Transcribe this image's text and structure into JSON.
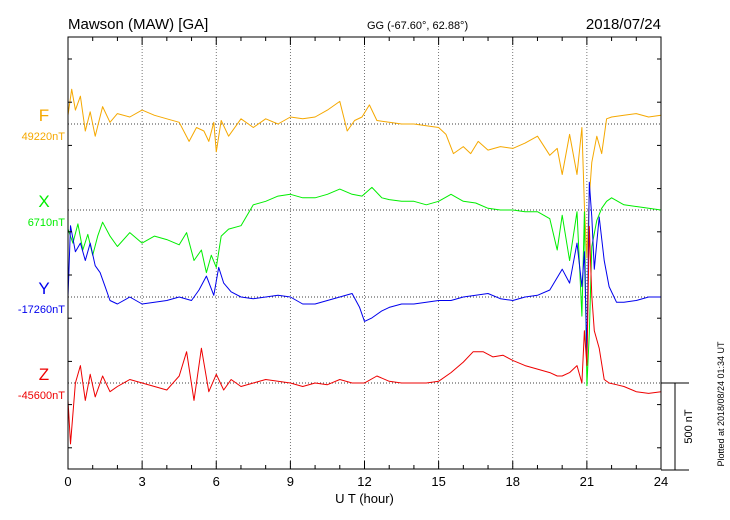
{
  "header": {
    "station": "Mawson (MAW)  [GA]",
    "coords": "GG (-67.60°,  62.88°)",
    "date": "2018/07/24"
  },
  "footer_note": "Plotted at 2018/08/24 01:34 UT",
  "chart_data": {
    "type": "line",
    "xlabel": "U T (hour)",
    "xlim": [
      0,
      24
    ],
    "xticks": [
      0,
      3,
      6,
      9,
      12,
      15,
      18,
      21,
      24
    ],
    "grid": true,
    "scale_bar": {
      "value": 500,
      "label": "500 nT"
    },
    "series": [
      {
        "name": "F",
        "baseline_label": "49220nT",
        "baseline": 49220,
        "color": "#f5a800",
        "x": [
          0,
          0.15,
          0.3,
          0.5,
          0.7,
          0.9,
          1.1,
          1.4,
          1.7,
          2.0,
          2.5,
          3.0,
          3.5,
          4.0,
          4.5,
          4.9,
          5.2,
          5.5,
          5.7,
          5.9,
          6.0,
          6.2,
          6.5,
          7.0,
          7.5,
          8.0,
          8.5,
          9.0,
          9.5,
          10.0,
          10.5,
          11.0,
          11.3,
          11.6,
          11.9,
          12.2,
          12.5,
          13.0,
          13.5,
          14.0,
          14.5,
          15.0,
          15.3,
          15.6,
          16.0,
          16.3,
          16.6,
          17.0,
          17.5,
          18.0,
          18.5,
          19.0,
          19.5,
          19.8,
          20.0,
          20.3,
          20.6,
          20.8,
          20.9,
          21.0,
          21.1,
          21.2,
          21.4,
          21.6,
          21.8,
          22.0,
          22.5,
          23.0,
          23.5,
          24.0
        ],
        "y": [
          49270,
          49420,
          49300,
          49380,
          49180,
          49290,
          49150,
          49320,
          49230,
          49280,
          49260,
          49300,
          49270,
          49250,
          49230,
          49120,
          49200,
          49180,
          49120,
          49230,
          49060,
          49240,
          49150,
          49250,
          49200,
          49250,
          49220,
          49260,
          49250,
          49260,
          49300,
          49350,
          49180,
          49240,
          49260,
          49330,
          49240,
          49230,
          49220,
          49220,
          49210,
          49200,
          49160,
          49050,
          49090,
          49050,
          49120,
          49070,
          49090,
          49080,
          49110,
          49150,
          49040,
          49080,
          48930,
          49160,
          48930,
          49200,
          48750,
          48450,
          48800,
          49000,
          49150,
          49050,
          49250,
          49260,
          49270,
          49280,
          49260,
          49270
        ]
      },
      {
        "name": "X",
        "baseline_label": "6710nT",
        "baseline": 6710,
        "color": "#00ee00",
        "x": [
          0,
          0.2,
          0.4,
          0.6,
          0.8,
          1.0,
          1.2,
          1.4,
          1.7,
          2.0,
          2.5,
          3.0,
          3.5,
          4.0,
          4.5,
          4.8,
          5.1,
          5.4,
          5.6,
          5.8,
          6.0,
          6.2,
          6.5,
          7.0,
          7.5,
          8.0,
          8.5,
          9.0,
          9.5,
          10.0,
          10.5,
          11.0,
          11.5,
          11.9,
          12.3,
          12.7,
          13.0,
          13.5,
          14.0,
          14.5,
          15.0,
          15.5,
          16.0,
          16.5,
          17.0,
          17.5,
          18.0,
          18.5,
          19.0,
          19.5,
          19.8,
          20.0,
          20.3,
          20.6,
          20.8,
          20.9,
          21.0,
          21.1,
          21.2,
          21.4,
          21.6,
          21.8,
          22.0,
          22.5,
          23.0,
          23.5,
          24.0
        ],
        "y": [
          6600,
          6520,
          6630,
          6480,
          6570,
          6450,
          6560,
          6640,
          6560,
          6500,
          6580,
          6520,
          6560,
          6540,
          6510,
          6580,
          6420,
          6480,
          6350,
          6450,
          6380,
          6560,
          6600,
          6620,
          6740,
          6760,
          6790,
          6800,
          6780,
          6780,
          6800,
          6830,
          6800,
          6790,
          6840,
          6780,
          6770,
          6760,
          6760,
          6740,
          6760,
          6800,
          6760,
          6750,
          6720,
          6710,
          6710,
          6700,
          6700,
          6660,
          6480,
          6680,
          6420,
          6700,
          6100,
          6700,
          5700,
          6000,
          6500,
          6650,
          6720,
          6760,
          6780,
          6740,
          6730,
          6720,
          6710
        ]
      },
      {
        "name": "Y",
        "baseline_label": "-17260nT",
        "baseline": -17260,
        "color": "#0000ee",
        "x": [
          0,
          0.1,
          0.3,
          0.5,
          0.7,
          0.9,
          1.1,
          1.3,
          1.5,
          1.7,
          2.0,
          2.5,
          3.0,
          3.5,
          4.0,
          4.5,
          5.0,
          5.3,
          5.6,
          5.9,
          6.1,
          6.3,
          6.6,
          7.0,
          7.5,
          8.0,
          8.5,
          9.0,
          9.5,
          10.0,
          10.5,
          11.0,
          11.5,
          11.8,
          12.0,
          12.3,
          12.7,
          13.0,
          13.5,
          14.0,
          14.5,
          15.0,
          15.5,
          16.0,
          16.5,
          17.0,
          17.5,
          18.0,
          18.5,
          19.0,
          19.5,
          20.0,
          20.3,
          20.6,
          20.8,
          20.9,
          21.0,
          21.1,
          21.2,
          21.3,
          21.5,
          21.7,
          21.9,
          22.2,
          22.5,
          23.0,
          23.5,
          24.0
        ],
        "y": [
          -17260,
          -16850,
          -17000,
          -16950,
          -17050,
          -16950,
          -17080,
          -17120,
          -17200,
          -17280,
          -17300,
          -17260,
          -17300,
          -17290,
          -17280,
          -17260,
          -17280,
          -17220,
          -17140,
          -17250,
          -17090,
          -17180,
          -17230,
          -17260,
          -17270,
          -17260,
          -17250,
          -17260,
          -17300,
          -17300,
          -17280,
          -17260,
          -17240,
          -17320,
          -17400,
          -17380,
          -17340,
          -17320,
          -17300,
          -17300,
          -17290,
          -17280,
          -17280,
          -17260,
          -17250,
          -17240,
          -17270,
          -17280,
          -17260,
          -17250,
          -17220,
          -17100,
          -17180,
          -16950,
          -17200,
          -17000,
          -17600,
          -16600,
          -16800,
          -17100,
          -16800,
          -17050,
          -17200,
          -17290,
          -17290,
          -17280,
          -17260,
          -17260
        ]
      },
      {
        "name": "Z",
        "baseline_label": "-45600nT",
        "baseline": -45600,
        "color": "#ee0000",
        "x": [
          0,
          0.1,
          0.3,
          0.5,
          0.7,
          0.9,
          1.1,
          1.4,
          1.7,
          2.0,
          2.5,
          3.0,
          3.5,
          4.0,
          4.5,
          4.8,
          5.1,
          5.4,
          5.7,
          6.0,
          6.3,
          6.6,
          7.0,
          7.5,
          8.0,
          8.5,
          9.0,
          9.5,
          10.0,
          10.5,
          11.0,
          11.5,
          12.0,
          12.5,
          13.0,
          13.5,
          14.0,
          14.5,
          15.0,
          15.5,
          16.0,
          16.4,
          16.8,
          17.2,
          17.6,
          18.0,
          18.5,
          19.0,
          19.5,
          19.8,
          20.0,
          20.3,
          20.6,
          20.8,
          20.9,
          21.0,
          21.1,
          21.2,
          21.3,
          21.5,
          21.7,
          21.9,
          22.2,
          22.5,
          23.0,
          23.5,
          24.0
        ],
        "y": [
          -45700,
          -45950,
          -45600,
          -45500,
          -45700,
          -45550,
          -45680,
          -45560,
          -45650,
          -45620,
          -45580,
          -45600,
          -45620,
          -45640,
          -45560,
          -45420,
          -45700,
          -45400,
          -45650,
          -45550,
          -45640,
          -45580,
          -45620,
          -45600,
          -45580,
          -45590,
          -45600,
          -45620,
          -45600,
          -45610,
          -45580,
          -45600,
          -45600,
          -45560,
          -45590,
          -45600,
          -45600,
          -45600,
          -45590,
          -45540,
          -45480,
          -45420,
          -45420,
          -45450,
          -45440,
          -45470,
          -45500,
          -45520,
          -45540,
          -45560,
          -45560,
          -45540,
          -45500,
          -45600,
          -45300,
          -45500,
          -44700,
          -45100,
          -45300,
          -45400,
          -45580,
          -45600,
          -45610,
          -45620,
          -45650,
          -45660,
          -45650
        ]
      }
    ]
  }
}
